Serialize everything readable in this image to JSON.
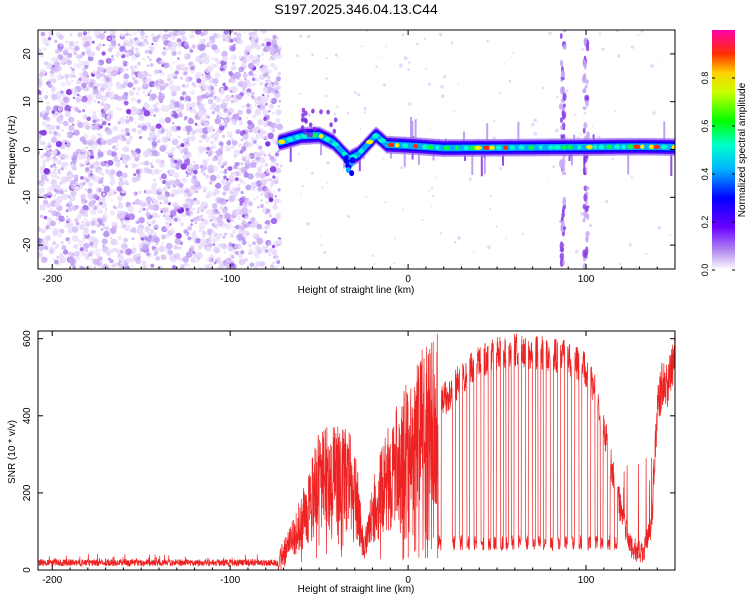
{
  "figure_title": "S197.2025.346.04.13.C44",
  "chart_data": [
    {
      "type": "heatmap",
      "title": "S197.2025.346.04.13.C44",
      "xlabel": "Height of straight line (km)",
      "ylabel": "Frequency (Hz)",
      "xlim": [
        -208,
        150
      ],
      "ylim": [
        -25,
        25
      ],
      "xticks": [
        -200,
        -100,
        0,
        100
      ],
      "yticks": [
        -20,
        -10,
        0,
        10,
        20
      ],
      "colorbar": {
        "label": "Normalized spectral amplitude",
        "range": [
          0.0,
          1.0
        ],
        "ticks": [
          0.0,
          0.2,
          0.4,
          0.6,
          0.8
        ],
        "tick_labels": [
          "0.0",
          "0.2",
          "0.4",
          "0.6",
          "0.8"
        ],
        "colors": [
          "#ffffff",
          "#8a2be2",
          "#0000ff",
          "#00ffff",
          "#00ff00",
          "#ffff00",
          "#ff0000",
          "#ff00ff"
        ]
      },
      "features": {
        "noise_region_x": [
          -208,
          -72
        ],
        "ridge_points": [
          {
            "x": -72,
            "y": 1.5
          },
          {
            "x": -60,
            "y": 2.8
          },
          {
            "x": -50,
            "y": 3.0
          },
          {
            "x": -42,
            "y": 1.5
          },
          {
            "x": -33,
            "y": -2.0
          },
          {
            "x": -28,
            "y": -1.0
          },
          {
            "x": -18,
            "y": 3.0
          },
          {
            "x": -12,
            "y": 1.0
          },
          {
            "x": 0,
            "y": 0.8
          },
          {
            "x": 20,
            "y": 0.3
          },
          {
            "x": 60,
            "y": 0.4
          },
          {
            "x": 100,
            "y": 0.5
          },
          {
            "x": 130,
            "y": 0.6
          },
          {
            "x": 150,
            "y": 0.5
          }
        ],
        "vertical_streaks_x": [
          87,
          100
        ]
      }
    },
    {
      "type": "line",
      "xlabel": "Height of straight line (km)",
      "ylabel": "SNR (10 * v/v)",
      "xlim": [
        -208,
        150
      ],
      "ylim": [
        0,
        620
      ],
      "xticks": [
        -200,
        -100,
        0,
        100
      ],
      "yticks": [
        0,
        200,
        400,
        600
      ],
      "line_color": "#ee2222",
      "series": [
        {
          "name": "SNR",
          "points": [
            {
              "x": -208,
              "y": 18
            },
            {
              "x": -150,
              "y": 18
            },
            {
              "x": -100,
              "y": 18
            },
            {
              "x": -73,
              "y": 18
            },
            {
              "x": -60,
              "y": 130
            },
            {
              "x": -50,
              "y": 240
            },
            {
              "x": -40,
              "y": 260
            },
            {
              "x": -30,
              "y": 230
            },
            {
              "x": -25,
              "y": 60
            },
            {
              "x": -18,
              "y": 180
            },
            {
              "x": -10,
              "y": 260
            },
            {
              "x": 0,
              "y": 330
            },
            {
              "x": 10,
              "y": 400
            },
            {
              "x": 20,
              "y": 440
            },
            {
              "x": 30,
              "y": 500
            },
            {
              "x": 40,
              "y": 540
            },
            {
              "x": 50,
              "y": 560
            },
            {
              "x": 60,
              "y": 570
            },
            {
              "x": 70,
              "y": 565
            },
            {
              "x": 80,
              "y": 560
            },
            {
              "x": 90,
              "y": 550
            },
            {
              "x": 100,
              "y": 520
            },
            {
              "x": 105,
              "y": 470
            },
            {
              "x": 110,
              "y": 370
            },
            {
              "x": 115,
              "y": 250
            },
            {
              "x": 120,
              "y": 150
            },
            {
              "x": 125,
              "y": 60
            },
            {
              "x": 132,
              "y": 40
            },
            {
              "x": 137,
              "y": 120
            },
            {
              "x": 140,
              "y": 420
            },
            {
              "x": 143,
              "y": 490
            },
            {
              "x": 146,
              "y": 480
            },
            {
              "x": 150,
              "y": 560
            }
          ],
          "dropouts": {
            "x_range": [
              17,
              118
            ],
            "low_value": 70,
            "x_positions": [
              17,
              25,
              29,
              33,
              37,
              41,
              45,
              48,
              52,
              55,
              58,
              62,
              66,
              70,
              73,
              76,
              80,
              84,
              88,
              92,
              96,
              101,
              105,
              108,
              112,
              116
            ]
          }
        }
      ]
    }
  ]
}
